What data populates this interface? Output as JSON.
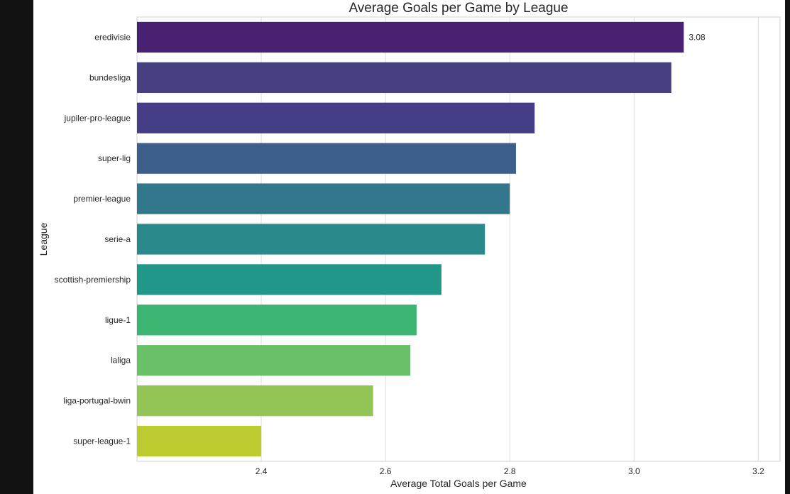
{
  "chart_data": {
    "type": "bar",
    "orientation": "horizontal",
    "title": "Average Goals per Game by League",
    "xlabel": "Average Total Goals per Game",
    "ylabel": "League",
    "categories": [
      "eredivisie",
      "bundesliga",
      "jupiler-pro-league",
      "super-lig",
      "premier-league",
      "serie-a",
      "scottish-premiership",
      "ligue-1",
      "laliga",
      "liga-portugal-bwin",
      "super-league-1"
    ],
    "values": [
      3.08,
      3.06,
      2.84,
      2.81,
      2.8,
      2.76,
      2.69,
      2.65,
      2.64,
      2.58,
      2.4
    ],
    "colors": [
      "#482173",
      "#463f80",
      "#433e85",
      "#3e5f8a",
      "#33778d",
      "#2a8a8b",
      "#21978a",
      "#3cb573",
      "#6abf69",
      "#92c456",
      "#bbcb30"
    ],
    "xlim": [
      2.2,
      3.235
    ],
    "xticks": [
      "2.4",
      "2.6",
      "2.8",
      "3.0",
      "3.2"
    ],
    "xtick_values": [
      2.4,
      2.6,
      2.8,
      3.0,
      3.2
    ],
    "annotations": [
      {
        "category": "eredivisie",
        "text": "3.08"
      }
    ],
    "grid": "vertical",
    "legend": "none"
  }
}
